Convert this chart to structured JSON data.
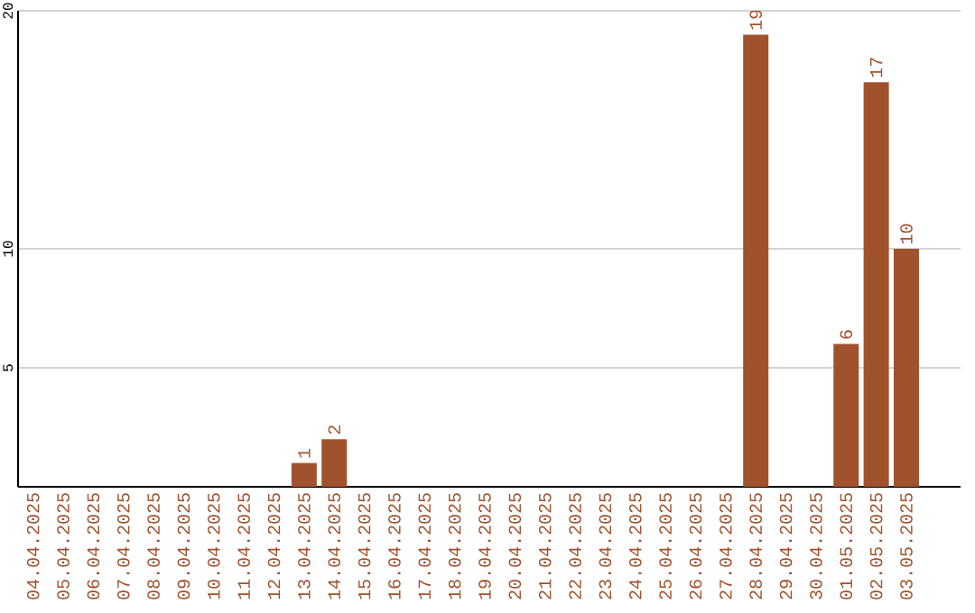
{
  "chart_data": {
    "type": "bar",
    "categories": [
      "04.04.2025",
      "05.04.2025",
      "06.04.2025",
      "07.04.2025",
      "08.04.2025",
      "09.04.2025",
      "10.04.2025",
      "11.04.2025",
      "12.04.2025",
      "13.04.2025",
      "14.04.2025",
      "15.04.2025",
      "16.04.2025",
      "17.04.2025",
      "18.04.2025",
      "19.04.2025",
      "20.04.2025",
      "21.04.2025",
      "22.04.2025",
      "23.04.2025",
      "24.04.2025",
      "25.04.2025",
      "26.04.2025",
      "27.04.2025",
      "28.04.2025",
      "29.04.2025",
      "30.04.2025",
      "01.05.2025",
      "02.05.2025",
      "03.05.2025"
    ],
    "values": [
      0,
      0,
      0,
      0,
      0,
      0,
      0,
      0,
      0,
      1,
      2,
      0,
      0,
      0,
      0,
      0,
      0,
      0,
      0,
      0,
      0,
      0,
      0,
      0,
      19,
      0,
      0,
      6,
      17,
      10
    ],
    "value_labels": [
      null,
      null,
      null,
      null,
      null,
      null,
      null,
      null,
      null,
      "1",
      "2",
      null,
      null,
      null,
      null,
      null,
      null,
      null,
      null,
      null,
      null,
      null,
      null,
      null,
      "19",
      null,
      null,
      "6",
      "17",
      "10"
    ],
    "color": "#a0522d",
    "ylim": [
      0,
      20
    ],
    "yticks": [
      5,
      10,
      20
    ],
    "grid": "y"
  }
}
